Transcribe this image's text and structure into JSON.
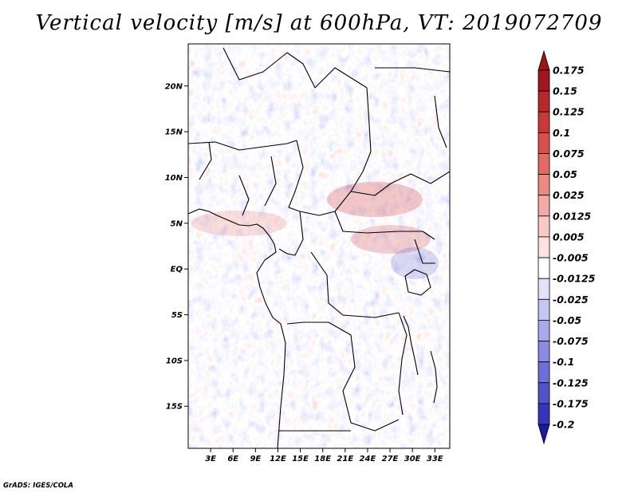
{
  "title": "Vertical velocity [m/s] at 600hPa, VT: 2019072709",
  "credit": "GrADS: IGES/COLA",
  "map": {
    "lat_range": [
      -19.6,
      24.6
    ],
    "lon_range": [
      0,
      35
    ],
    "lat_ticks": [
      {
        "value": 20,
        "label": "20N"
      },
      {
        "value": 15,
        "label": "15N"
      },
      {
        "value": 10,
        "label": "10N"
      },
      {
        "value": 5,
        "label": "5N"
      },
      {
        "value": 0,
        "label": "EQ"
      },
      {
        "value": -5,
        "label": "5S"
      },
      {
        "value": -10,
        "label": "10S"
      },
      {
        "value": -15,
        "label": "15S"
      }
    ],
    "lon_ticks": [
      {
        "value": 3,
        "label": "3E"
      },
      {
        "value": 6,
        "label": "6E"
      },
      {
        "value": 9,
        "label": "9E"
      },
      {
        "value": 12,
        "label": "12E"
      },
      {
        "value": 15,
        "label": "15E"
      },
      {
        "value": 18,
        "label": "18E"
      },
      {
        "value": 21,
        "label": "21E"
      },
      {
        "value": 24,
        "label": "24E"
      },
      {
        "value": 27,
        "label": "27E"
      },
      {
        "value": 30,
        "label": "30E"
      },
      {
        "value": 33,
        "label": "33E"
      }
    ]
  },
  "colorbar": {
    "levels": [
      {
        "label": "0.175",
        "color": "#a4161d"
      },
      {
        "label": "0.15",
        "color": "#b8282a"
      },
      {
        "label": "0.125",
        "color": "#c83a37"
      },
      {
        "label": "0.1",
        "color": "#d85048"
      },
      {
        "label": "0.075",
        "color": "#e36a60"
      },
      {
        "label": "0.05",
        "color": "#ec8a82"
      },
      {
        "label": "0.025",
        "color": "#f4aaa4"
      },
      {
        "label": "0.0125",
        "color": "#f9c9c4"
      },
      {
        "label": "0.005",
        "color": "#fde3e0"
      },
      {
        "label": "-0.005",
        "color": "#ffffff"
      },
      {
        "label": "-0.0125",
        "color": "#e2e2fb"
      },
      {
        "label": "-0.025",
        "color": "#c6c6f5"
      },
      {
        "label": "-0.05",
        "color": "#a9a9ee"
      },
      {
        "label": "-0.075",
        "color": "#8b8be4"
      },
      {
        "label": "-0.1",
        "color": "#6e6ed8"
      },
      {
        "label": "-0.125",
        "color": "#5252cb"
      },
      {
        "label": "-0.175",
        "color": "#3636bd"
      },
      {
        "label": "-0.2",
        "color": "#2020ab"
      }
    ],
    "top_color": "#9a1418",
    "bottom_color": "#1b1b98"
  }
}
